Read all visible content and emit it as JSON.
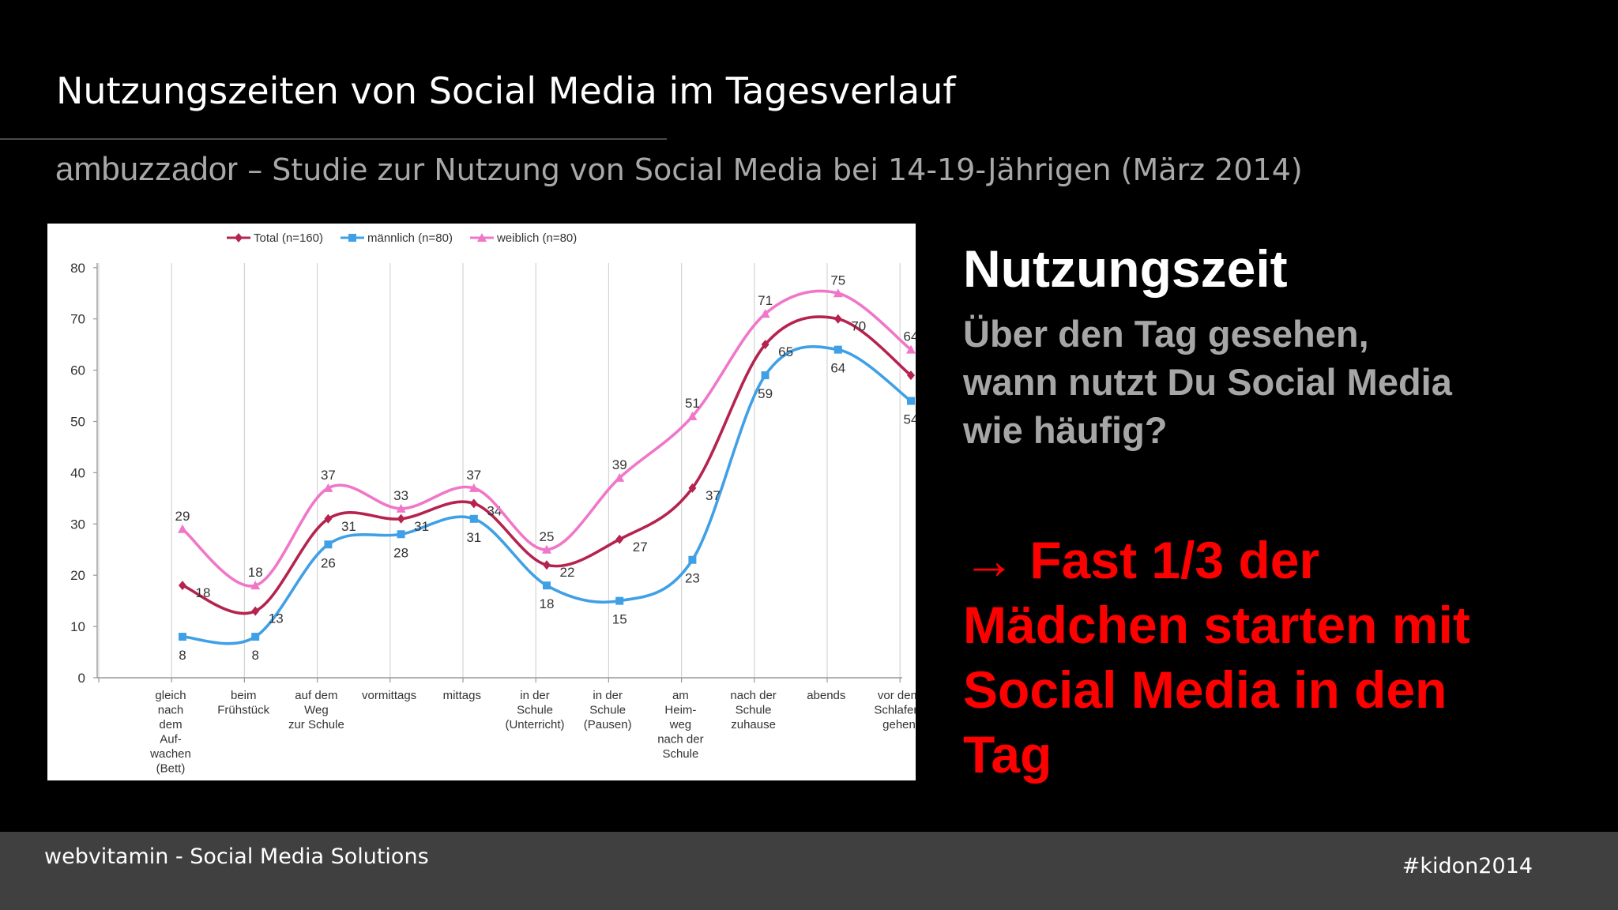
{
  "slide": {
    "title": "Nutzungszeiten von Social Media im Tagesverlauf",
    "subtitle_brand": "ambuzzador",
    "subtitle_rest": " – Studie zur Nutzung von Social Media bei 14-19-Jährigen  (März 2014)"
  },
  "right_panel": {
    "heading": "Nutzungszeit",
    "question": "Über den Tag gesehen, wann nutzt Du Social Media wie häufig?",
    "callout": "→ Fast 1/3 der Mädchen starten mit Social Media in den Tag"
  },
  "footer": {
    "left": "webvitamin - Social Media Solutions",
    "right": "#kidon2014"
  },
  "chart_data": {
    "type": "line",
    "categories": [
      [
        "gleich",
        "nach",
        "dem",
        "Auf-",
        "wachen",
        "(Bett)"
      ],
      [
        "beim",
        "Frühstück"
      ],
      [
        "auf dem",
        "Weg",
        "zur Schule"
      ],
      [
        "vormittags"
      ],
      [
        "mittags"
      ],
      [
        "in der",
        "Schule",
        "(Unterricht)"
      ],
      [
        "in der",
        "Schule",
        "(Pausen)"
      ],
      [
        "am",
        "Heim-",
        "weg",
        "nach der",
        "Schule"
      ],
      [
        "nach der",
        "Schule",
        "zuhause"
      ],
      [
        "abends"
      ],
      [
        "vor dem",
        "Schlafen-",
        "gehen"
      ]
    ],
    "series": [
      {
        "name": "Total (n=160)",
        "color": "#b5234f",
        "marker": "diamond",
        "values": [
          18,
          13,
          31,
          31,
          34,
          22,
          27,
          37,
          65,
          70,
          59
        ]
      },
      {
        "name": "männlich (n=80)",
        "color": "#3fa0e6",
        "marker": "square",
        "values": [
          8,
          8,
          26,
          28,
          31,
          18,
          15,
          23,
          59,
          64,
          54
        ]
      },
      {
        "name": "weiblich (n=80)",
        "color": "#f077c8",
        "marker": "triangle",
        "values": [
          29,
          18,
          37,
          33,
          37,
          25,
          39,
          51,
          71,
          75,
          64
        ]
      }
    ],
    "ylim": [
      0,
      80
    ],
    "yticks": [
      0,
      10,
      20,
      30,
      40,
      50,
      60,
      70,
      80
    ],
    "grid": "vertical",
    "legend": "top"
  }
}
